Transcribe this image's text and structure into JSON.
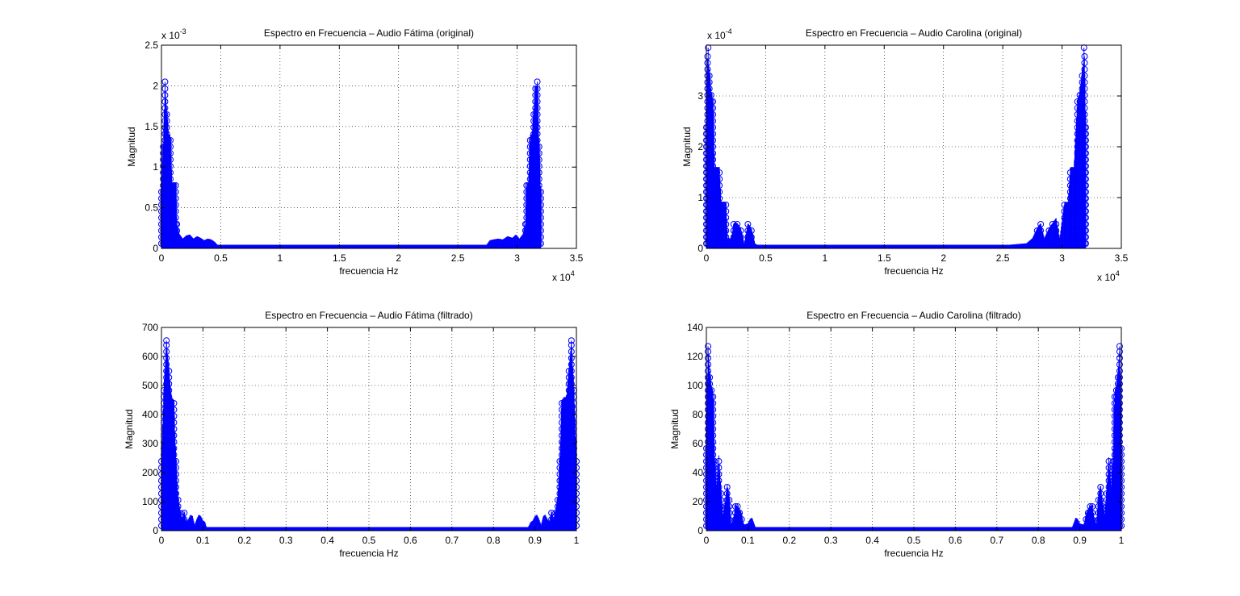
{
  "figure": {
    "background": "#ffffff"
  },
  "chart_data": [
    {
      "type": "stem",
      "title": "Espectro en Frecuencia – Audio Fátima (original)",
      "xlabel": "frecuencia Hz",
      "ylabel": "Magnitud",
      "x_exponent_text": "x 10",
      "x_exponent_power": "4",
      "y_exponent_text": "x 10",
      "y_exponent_power": "-3",
      "xlim": [
        0,
        35000
      ],
      "ylim": [
        0,
        0.0025
      ],
      "xticks": [
        0,
        5000,
        10000,
        15000,
        20000,
        25000,
        30000,
        35000
      ],
      "xtick_labels": [
        "0",
        "0.5",
        "1",
        "1.5",
        "2",
        "2.5",
        "3",
        "3.5"
      ],
      "yticks": [
        0,
        0.0005,
        0.001,
        0.0015,
        0.002,
        0.0025
      ],
      "ytick_labels": [
        "0",
        "0.5",
        "1",
        "1.5",
        "2",
        "2.5"
      ],
      "grid": true,
      "color": "#0000ff",
      "series": [
        {
          "x_max": 32000,
          "envelope": [
            [
              0,
              0.0007
            ],
            [
              150,
              0.0013
            ],
            [
              300,
              0.002
            ],
            [
              450,
              0.0017
            ],
            [
              600,
              0.0014
            ],
            [
              750,
              0.0014
            ],
            [
              900,
              0.0008
            ],
            [
              1050,
              0.0008
            ],
            [
              1200,
              0.0008
            ],
            [
              1300,
              0.0003
            ],
            [
              1500,
              0.00018
            ],
            [
              1800,
              0.00012
            ],
            [
              2100,
              0.00016
            ],
            [
              2400,
              0.00017
            ],
            [
              2700,
              0.00012
            ],
            [
              3000,
              0.00015
            ],
            [
              3300,
              0.00013
            ],
            [
              3600,
              0.0001
            ],
            [
              3900,
              0.00012
            ],
            [
              4200,
              0.00011
            ],
            [
              4500,
              8e-05
            ],
            [
              4800,
              3e-05
            ],
            [
              5200,
              1e-05
            ],
            [
              27000,
              1e-05
            ],
            [
              27400,
              4e-05
            ],
            [
              27700,
              0.0001
            ],
            [
              28000,
              0.00011
            ],
            [
              28400,
              0.00012
            ],
            [
              28800,
              0.00011
            ],
            [
              29200,
              0.00015
            ],
            [
              29600,
              0.00013
            ],
            [
              29900,
              0.00017
            ],
            [
              30200,
              0.00012
            ],
            [
              30500,
              0.00018
            ],
            [
              30700,
              0.0003
            ],
            [
              30800,
              0.0008
            ],
            [
              30950,
              0.0008
            ],
            [
              31100,
              0.0014
            ],
            [
              31250,
              0.0014
            ],
            [
              31400,
              0.0017
            ],
            [
              31550,
              0.002
            ],
            [
              31700,
              0.002
            ],
            [
              31850,
              0.0013
            ],
            [
              32000,
              0.0007
            ]
          ],
          "peaks": [
            [
              300,
              0.00205
            ],
            [
              31700,
              0.00205
            ]
          ]
        }
      ]
    },
    {
      "type": "stem",
      "title": "Espectro en Frecuencia – Audio Carolina (original)",
      "xlabel": "frecuencia Hz",
      "ylabel": "Magnitud",
      "x_exponent_text": "x 10",
      "x_exponent_power": "4",
      "y_exponent_text": "x 10",
      "y_exponent_power": "-4",
      "xlim": [
        0,
        35000
      ],
      "ylim": [
        0,
        0.0004
      ],
      "xticks": [
        0,
        5000,
        10000,
        15000,
        20000,
        25000,
        30000,
        35000
      ],
      "xtick_labels": [
        "0",
        "0.5",
        "1",
        "1.5",
        "2",
        "2.5",
        "3",
        "3.5"
      ],
      "yticks": [
        0,
        0.0001,
        0.0002,
        0.0003
      ],
      "ytick_labels": [
        "0",
        "1",
        "2",
        "3"
      ],
      "grid": true,
      "color": "#0000ff",
      "series": [
        {
          "x_max": 32000,
          "envelope": [
            [
              0,
              0.00025
            ],
            [
              100,
              0.00038
            ],
            [
              250,
              0.00035
            ],
            [
              400,
              0.00031
            ],
            [
              550,
              0.00029
            ],
            [
              700,
              0.00016
            ],
            [
              900,
              0.00016
            ],
            [
              1100,
              0.00016
            ],
            [
              1250,
              9e-05
            ],
            [
              1450,
              9e-05
            ],
            [
              1650,
              9e-05
            ],
            [
              1800,
              2e-05
            ],
            [
              2100,
              2e-05
            ],
            [
              2300,
              5e-05
            ],
            [
              2600,
              5e-05
            ],
            [
              2900,
              4e-05
            ],
            [
              3200,
              1e-05
            ],
            [
              3500,
              5e-05
            ],
            [
              3800,
              4e-05
            ],
            [
              4100,
              1e-05
            ],
            [
              4400,
              5e-06
            ],
            [
              5000,
              3e-06
            ],
            [
              7500,
              5e-06
            ],
            [
              24500,
              5e-06
            ],
            [
              27000,
              1e-05
            ],
            [
              27500,
              2e-05
            ],
            [
              27900,
              4e-05
            ],
            [
              28200,
              5e-05
            ],
            [
              28500,
              2e-05
            ],
            [
              28900,
              4e-05
            ],
            [
              29200,
              5e-05
            ],
            [
              29500,
              6e-05
            ],
            [
              29800,
              2e-05
            ],
            [
              30200,
              9e-05
            ],
            [
              30500,
              9e-05
            ],
            [
              30700,
              0.00016
            ],
            [
              31000,
              0.00016
            ],
            [
              31300,
              0.00029
            ],
            [
              31500,
              0.00031
            ],
            [
              31700,
              0.00035
            ],
            [
              31900,
              0.00038
            ],
            [
              32000,
              0.00025
            ]
          ],
          "peaks": [
            [
              150,
              0.000395
            ],
            [
              31850,
              0.000395
            ]
          ]
        }
      ]
    },
    {
      "type": "stem",
      "title": "Espectro en Frecuencia – Audio Fátima (filtrado)",
      "xlabel": "frecuencia Hz",
      "ylabel": "Magnitud",
      "xlim": [
        0,
        1
      ],
      "ylim": [
        0,
        700
      ],
      "xticks": [
        0,
        0.1,
        0.2,
        0.3,
        0.4,
        0.5,
        0.6,
        0.7,
        0.8,
        0.9,
        1
      ],
      "xtick_labels": [
        "0",
        "0.1",
        "0.2",
        "0.3",
        "0.4",
        "0.5",
        "0.6",
        "0.7",
        "0.8",
        "0.9",
        "1"
      ],
      "yticks": [
        0,
        100,
        200,
        300,
        400,
        500,
        600,
        700
      ],
      "ytick_labels": [
        "0",
        "100",
        "200",
        "300",
        "400",
        "500",
        "600",
        "700"
      ],
      "grid": true,
      "color": "#0000ff",
      "series": [
        {
          "x_max": 1,
          "envelope": [
            [
              0,
              250
            ],
            [
              0.006,
              500
            ],
            [
              0.012,
              650
            ],
            [
              0.018,
              560
            ],
            [
              0.024,
              460
            ],
            [
              0.03,
              450
            ],
            [
              0.035,
              250
            ],
            [
              0.04,
              120
            ],
            [
              0.045,
              70
            ],
            [
              0.05,
              40
            ],
            [
              0.055,
              70
            ],
            [
              0.06,
              30
            ],
            [
              0.065,
              40
            ],
            [
              0.07,
              55
            ],
            [
              0.075,
              50
            ],
            [
              0.08,
              20
            ],
            [
              0.085,
              40
            ],
            [
              0.09,
              55
            ],
            [
              0.095,
              50
            ],
            [
              0.1,
              35
            ],
            [
              0.105,
              30
            ],
            [
              0.11,
              5
            ],
            [
              0.12,
              2
            ],
            [
              0.88,
              2
            ],
            [
              0.89,
              30
            ],
            [
              0.895,
              35
            ],
            [
              0.9,
              50
            ],
            [
              0.905,
              55
            ],
            [
              0.91,
              40
            ],
            [
              0.915,
              20
            ],
            [
              0.92,
              50
            ],
            [
              0.925,
              55
            ],
            [
              0.93,
              40
            ],
            [
              0.935,
              30
            ],
            [
              0.94,
              70
            ],
            [
              0.945,
              40
            ],
            [
              0.95,
              70
            ],
            [
              0.955,
              120
            ],
            [
              0.96,
              250
            ],
            [
              0.965,
              450
            ],
            [
              0.97,
              460
            ],
            [
              0.976,
              460
            ],
            [
              0.982,
              560
            ],
            [
              0.988,
              650
            ],
            [
              0.994,
              500
            ],
            [
              1,
              250
            ]
          ],
          "peaks": [
            [
              0.012,
              655
            ],
            [
              0.988,
              655
            ]
          ]
        }
      ]
    },
    {
      "type": "stem",
      "title": "Espectro en Frecuencia – Audio Carolina (filtrado)",
      "xlabel": "frecuencia Hz",
      "ylabel": "Magnitud",
      "xlim": [
        0,
        1
      ],
      "ylim": [
        0,
        140
      ],
      "xticks": [
        0,
        0.1,
        0.2,
        0.3,
        0.4,
        0.5,
        0.6,
        0.7,
        0.8,
        0.9,
        1
      ],
      "xtick_labels": [
        "0",
        "0.1",
        "0.2",
        "0.3",
        "0.4",
        "0.5",
        "0.6",
        "0.7",
        "0.8",
        "0.9",
        "1"
      ],
      "yticks": [
        0,
        20,
        40,
        60,
        80,
        100,
        120,
        140
      ],
      "ytick_labels": [
        "0",
        "20",
        "40",
        "60",
        "80",
        "100",
        "120",
        "140"
      ],
      "grid": true,
      "color": "#0000ff",
      "series": [
        {
          "x_max": 1,
          "envelope": [
            [
              0,
              60
            ],
            [
              0.004,
              125
            ],
            [
              0.008,
              110
            ],
            [
              0.012,
              100
            ],
            [
              0.016,
              95
            ],
            [
              0.02,
              50
            ],
            [
              0.025,
              30
            ],
            [
              0.03,
              52
            ],
            [
              0.035,
              30
            ],
            [
              0.04,
              10
            ],
            [
              0.045,
              20
            ],
            [
              0.05,
              32
            ],
            [
              0.055,
              25
            ],
            [
              0.06,
              5
            ],
            [
              0.065,
              8
            ],
            [
              0.07,
              18
            ],
            [
              0.075,
              17
            ],
            [
              0.08,
              15
            ],
            [
              0.085,
              12
            ],
            [
              0.09,
              4
            ],
            [
              0.1,
              5
            ],
            [
              0.105,
              8
            ],
            [
              0.11,
              9
            ],
            [
              0.115,
              5
            ],
            [
              0.12,
              1
            ],
            [
              0.88,
              1
            ],
            [
              0.885,
              5
            ],
            [
              0.89,
              9
            ],
            [
              0.895,
              8
            ],
            [
              0.9,
              5
            ],
            [
              0.91,
              4
            ],
            [
              0.915,
              12
            ],
            [
              0.92,
              15
            ],
            [
              0.925,
              17
            ],
            [
              0.93,
              18
            ],
            [
              0.935,
              8
            ],
            [
              0.94,
              5
            ],
            [
              0.945,
              25
            ],
            [
              0.95,
              32
            ],
            [
              0.955,
              20
            ],
            [
              0.96,
              10
            ],
            [
              0.965,
              30
            ],
            [
              0.97,
              52
            ],
            [
              0.975,
              30
            ],
            [
              0.98,
              50
            ],
            [
              0.984,
              95
            ],
            [
              0.988,
              100
            ],
            [
              0.992,
              110
            ],
            [
              0.996,
              125
            ],
            [
              1,
              60
            ]
          ],
          "peaks": [
            [
              0.004,
              127
            ],
            [
              0.996,
              127
            ]
          ]
        }
      ]
    }
  ]
}
